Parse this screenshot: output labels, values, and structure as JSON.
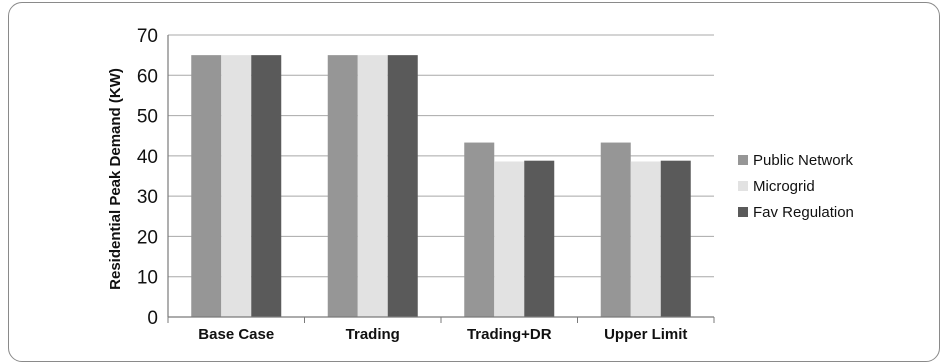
{
  "chart_data": {
    "type": "bar",
    "title": "",
    "xlabel": "",
    "ylabel": "Residential Peak Demand (KW)",
    "ylim": [
      0,
      70
    ],
    "yticks": [
      0,
      10,
      20,
      30,
      40,
      50,
      60,
      70
    ],
    "grid": true,
    "legend_position": "right",
    "categories": [
      "Base Case",
      "Trading",
      "Trading+DR",
      "Upper Limit"
    ],
    "series": [
      {
        "name": "Public Network",
        "color": "#969696",
        "values": [
          65,
          65,
          43.3,
          43.3
        ]
      },
      {
        "name": "Microgrid",
        "color": "#e2e2e2",
        "values": [
          65,
          65,
          38.6,
          38.6
        ]
      },
      {
        "name": "Fav Regulation",
        "color": "#5a5a5a",
        "values": [
          65,
          65,
          38.8,
          38.8
        ]
      }
    ]
  }
}
